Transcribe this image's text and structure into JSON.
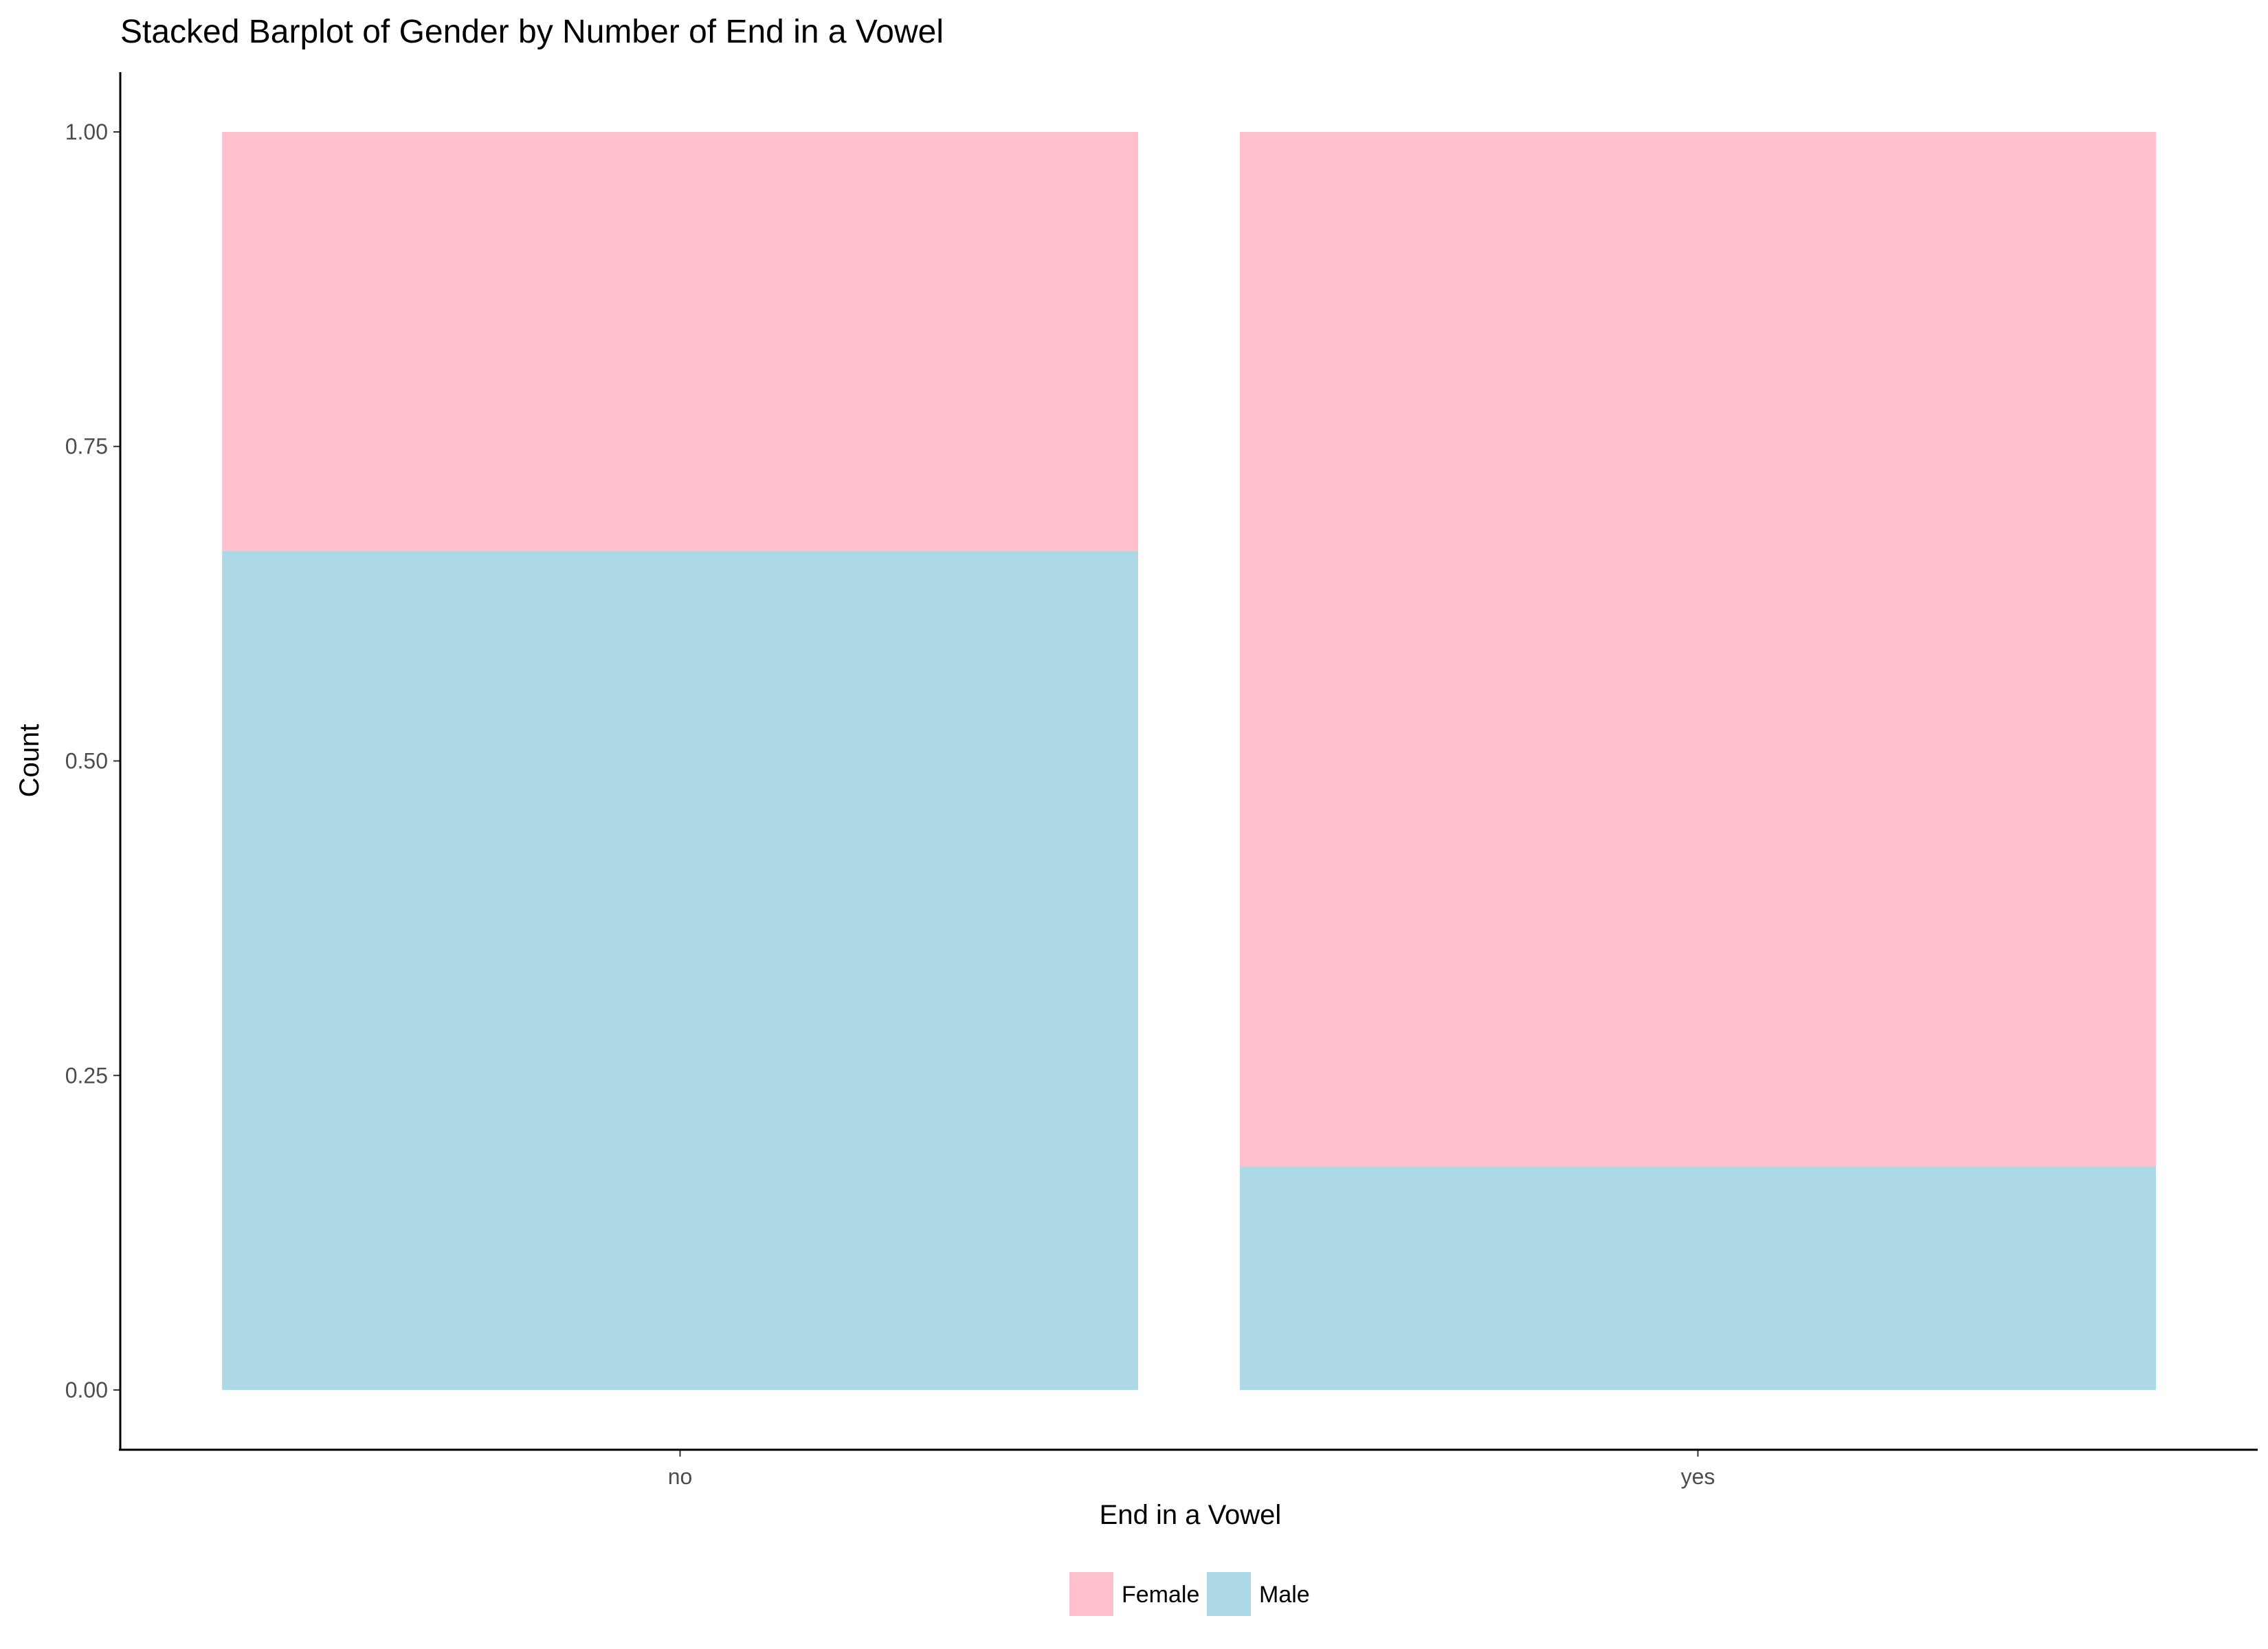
{
  "chart_data": {
    "type": "bar",
    "stacked": true,
    "title": "Stacked Barplot of Gender by Number of End in a Vowel",
    "xlabel": "End in a Vowel",
    "ylabel": "Count",
    "categories": [
      "no",
      "yes"
    ],
    "series": [
      {
        "name": "Male",
        "color": "#add8e6",
        "values": [
          0.667,
          0.178
        ]
      },
      {
        "name": "Female",
        "color": "#ffc0cb",
        "values": [
          0.333,
          0.822
        ]
      }
    ],
    "ylim": [
      -0.0475,
      1.0475
    ],
    "yticks": [
      0,
      0.25,
      0.5,
      0.75,
      1
    ],
    "ytick_labels": [
      "0.00",
      "0.25",
      "0.50",
      "0.75",
      "1.00"
    ],
    "grid": false,
    "legend": {
      "position": "bottom",
      "entries": [
        {
          "label": "Female",
          "color": "#ffc0cb"
        },
        {
          "label": "Male",
          "color": "#add8e6"
        }
      ]
    }
  }
}
